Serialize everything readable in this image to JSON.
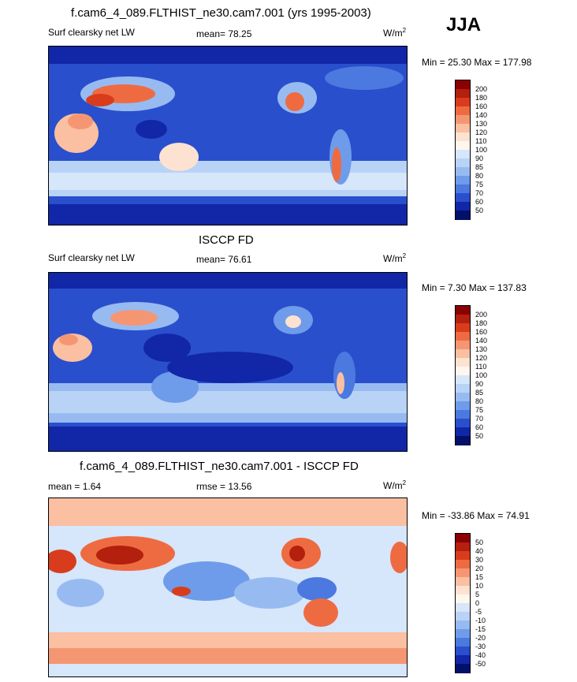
{
  "season": "JJA",
  "panels": [
    {
      "title": "f.cam6_4_089.FLTHIST_ne30.cam7.001 (yrs 1995-2003)",
      "left_label": "Surf clearsky net LW",
      "center_label": "mean=  78.25",
      "units": "W/m",
      "units_sup": "2",
      "minmax": "Min =  25.30 Max = 177.98",
      "colorbar": {
        "levels": [
          "200",
          "180",
          "160",
          "140",
          "130",
          "120",
          "110",
          "100",
          "90",
          "85",
          "80",
          "75",
          "70",
          "60",
          "50"
        ],
        "colors": [
          "#8b0000",
          "#b3200e",
          "#d93c1c",
          "#ee6b42",
          "#f59673",
          "#fbbfa2",
          "#fde2d1",
          "#fff6ee",
          "#d6e6fb",
          "#b9d3f7",
          "#97bbf1",
          "#6f9cea",
          "#4c79df",
          "#2a4fcd",
          "#1127a8",
          "#031069"
        ]
      }
    },
    {
      "title": "ISCCP FD",
      "left_label": "Surf clearsky net LW",
      "center_label": "mean=  76.61",
      "units": "W/m",
      "units_sup": "2",
      "minmax": "Min =   7.30 Max = 137.83",
      "colorbar": {
        "levels": [
          "200",
          "180",
          "160",
          "140",
          "130",
          "120",
          "110",
          "100",
          "90",
          "85",
          "80",
          "75",
          "70",
          "60",
          "50"
        ],
        "colors": [
          "#8b0000",
          "#b3200e",
          "#d93c1c",
          "#ee6b42",
          "#f59673",
          "#fbbfa2",
          "#fde2d1",
          "#fff6ee",
          "#d6e6fb",
          "#b9d3f7",
          "#97bbf1",
          "#6f9cea",
          "#4c79df",
          "#2a4fcd",
          "#1127a8",
          "#031069"
        ]
      }
    },
    {
      "title": "f.cam6_4_089.FLTHIST_ne30.cam7.001 - ISCCP FD",
      "left_label": "mean =   1.64",
      "center_label": "rmse =  13.56",
      "units": "W/m",
      "units_sup": "2",
      "minmax": "Min = -33.86 Max =  74.91",
      "colorbar": {
        "levels": [
          "50",
          "40",
          "30",
          "20",
          "15",
          "10",
          "5",
          "0",
          "-5",
          "-10",
          "-15",
          "-20",
          "-30",
          "-40",
          "-50"
        ],
        "colors": [
          "#8b0000",
          "#b3200e",
          "#d93c1c",
          "#ee6b42",
          "#f59673",
          "#fbbfa2",
          "#fde2d1",
          "#fff6ee",
          "#d6e6fb",
          "#b9d3f7",
          "#97bbf1",
          "#6f9cea",
          "#4c79df",
          "#2a4fcd",
          "#1127a8",
          "#031069"
        ]
      }
    }
  ],
  "chart_data": {
    "type": "heatmap",
    "projection": "cylindrical equidistant, global, centered on Pacific",
    "variable": "Surf clearsky net LW",
    "season": "JJA",
    "panels": [
      {
        "name": "model",
        "mean": 78.25,
        "min": 25.3,
        "max": 177.98
      },
      {
        "name": "ISCCP FD",
        "mean": 76.61,
        "min": 7.3,
        "max": 137.83
      },
      {
        "name": "difference",
        "mean": 1.64,
        "rmse": 13.56,
        "min": -33.86,
        "max": 74.91
      }
    ]
  }
}
